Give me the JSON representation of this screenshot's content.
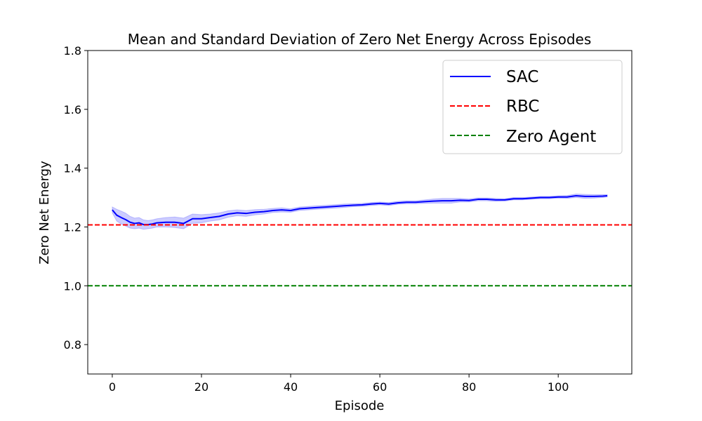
{
  "chart_data": {
    "type": "line",
    "title": "Mean and Standard Deviation of Zero Net Energy Across Episodes",
    "xlabel": "Episode",
    "ylabel": "Zero Net Energy",
    "xlim": [
      -5.5,
      116.5
    ],
    "ylim": [
      0.7,
      1.8
    ],
    "xticks": [
      0,
      20,
      40,
      60,
      80,
      100
    ],
    "xtick_labels": [
      "0",
      "20",
      "40",
      "60",
      "80",
      "100"
    ],
    "yticks": [
      0.8,
      1.0,
      1.2,
      1.4,
      1.6,
      1.8
    ],
    "ytick_labels": [
      "0.8",
      "1.0",
      "1.2",
      "1.4",
      "1.6",
      "1.8"
    ],
    "grid": false,
    "legend_position": "top-right",
    "series": [
      {
        "name": "SAC",
        "kind": "line",
        "color": "#0000ff",
        "x": [
          0,
          1,
          2,
          3,
          4,
          5,
          6,
          7,
          8,
          9,
          10,
          12,
          14,
          16,
          18,
          20,
          22,
          24,
          26,
          28,
          30,
          32,
          34,
          36,
          38,
          40,
          42,
          44,
          46,
          48,
          50,
          52,
          54,
          56,
          58,
          60,
          62,
          64,
          66,
          68,
          70,
          72,
          74,
          76,
          78,
          80,
          82,
          84,
          86,
          88,
          90,
          92,
          94,
          96,
          98,
          100,
          102,
          104,
          106,
          108,
          110,
          111
        ],
        "y": [
          1.258,
          1.24,
          1.232,
          1.225,
          1.216,
          1.212,
          1.214,
          1.208,
          1.208,
          1.21,
          1.214,
          1.216,
          1.216,
          1.212,
          1.228,
          1.228,
          1.232,
          1.236,
          1.244,
          1.248,
          1.246,
          1.25,
          1.252,
          1.256,
          1.258,
          1.256,
          1.262,
          1.264,
          1.266,
          1.268,
          1.27,
          1.272,
          1.274,
          1.275,
          1.278,
          1.28,
          1.278,
          1.282,
          1.284,
          1.284,
          1.286,
          1.288,
          1.289,
          1.289,
          1.291,
          1.29,
          1.294,
          1.294,
          1.292,
          1.292,
          1.296,
          1.296,
          1.298,
          1.3,
          1.3,
          1.302,
          1.302,
          1.306,
          1.304,
          1.304,
          1.305,
          1.306
        ],
        "std": [
          0.01,
          0.02,
          0.022,
          0.022,
          0.02,
          0.018,
          0.018,
          0.016,
          0.014,
          0.014,
          0.014,
          0.016,
          0.018,
          0.018,
          0.016,
          0.014,
          0.012,
          0.012,
          0.011,
          0.01,
          0.01,
          0.009,
          0.008,
          0.007,
          0.007,
          0.006,
          0.006,
          0.006,
          0.006,
          0.006,
          0.006,
          0.006,
          0.005,
          0.005,
          0.005,
          0.005,
          0.005,
          0.005,
          0.005,
          0.005,
          0.006,
          0.007,
          0.008,
          0.008,
          0.006,
          0.005,
          0.005,
          0.005,
          0.005,
          0.004,
          0.004,
          0.004,
          0.004,
          0.004,
          0.004,
          0.004,
          0.005,
          0.006,
          0.007,
          0.006,
          0.005,
          0.004
        ]
      },
      {
        "name": "RBC",
        "kind": "hline",
        "color": "#ff0000",
        "y": 1.207,
        "dash": "dashed"
      },
      {
        "name": "Zero Agent",
        "kind": "hline",
        "color": "#008000",
        "y": 1.0,
        "dash": "dashed"
      }
    ]
  }
}
